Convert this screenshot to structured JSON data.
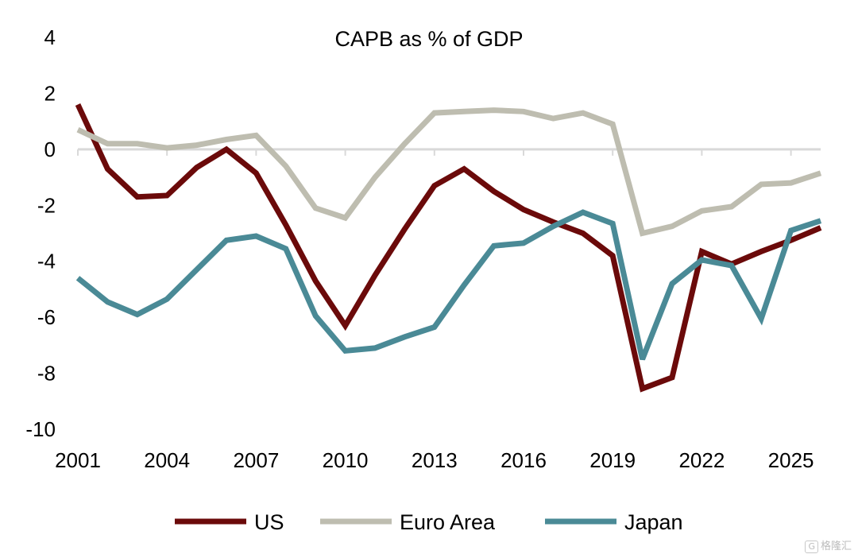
{
  "chart_data": {
    "type": "line",
    "title": "CAPB as % of GDP",
    "xlabel": "",
    "ylabel": "",
    "ylim": [
      -10,
      4
    ],
    "xlim": [
      2001,
      2026
    ],
    "yticks": [
      4,
      2,
      0,
      -2,
      -4,
      -6,
      -8,
      -10
    ],
    "xticks": [
      2001,
      2004,
      2007,
      2010,
      2013,
      2016,
      2019,
      2022,
      2025
    ],
    "x": [
      2001,
      2002,
      2003,
      2004,
      2005,
      2006,
      2007,
      2008,
      2009,
      2010,
      2011,
      2012,
      2013,
      2014,
      2015,
      2016,
      2017,
      2018,
      2019,
      2020,
      2021,
      2022,
      2023,
      2024,
      2025,
      2026
    ],
    "series": [
      {
        "name": "US",
        "color": "#6b0a0a",
        "values": [
          1.6,
          -0.7,
          -1.7,
          -1.65,
          -0.65,
          0.0,
          -0.85,
          -2.7,
          -4.7,
          -6.3,
          -4.5,
          -2.85,
          -1.3,
          -0.7,
          -1.5,
          -2.15,
          -2.6,
          -3.0,
          -3.8,
          -8.55,
          -8.15,
          -3.65,
          -4.1,
          -3.65,
          -3.25,
          -2.8
        ]
      },
      {
        "name": "Euro Area",
        "color": "#bebdb0",
        "values": [
          0.7,
          0.2,
          0.2,
          0.05,
          0.15,
          0.35,
          0.5,
          -0.6,
          -2.1,
          -2.45,
          -1.0,
          0.2,
          1.3,
          1.35,
          1.4,
          1.35,
          1.1,
          1.3,
          0.9,
          -3.0,
          -2.75,
          -2.2,
          -2.05,
          -1.25,
          -1.2,
          -0.85
        ]
      },
      {
        "name": "Japan",
        "color": "#4a8a96",
        "values": [
          -4.6,
          -5.45,
          -5.9,
          -5.35,
          -4.3,
          -3.25,
          -3.1,
          -3.55,
          -5.95,
          -7.2,
          -7.1,
          -6.7,
          -6.35,
          -4.85,
          -3.45,
          -3.35,
          -2.75,
          -2.25,
          -2.65,
          -7.5,
          -4.8,
          -3.95,
          -4.15,
          -6.05,
          -2.9,
          -2.55
        ]
      }
    ],
    "legend_position": "bottom"
  },
  "watermark_text": "格隆汇",
  "watermark_logo": "G"
}
